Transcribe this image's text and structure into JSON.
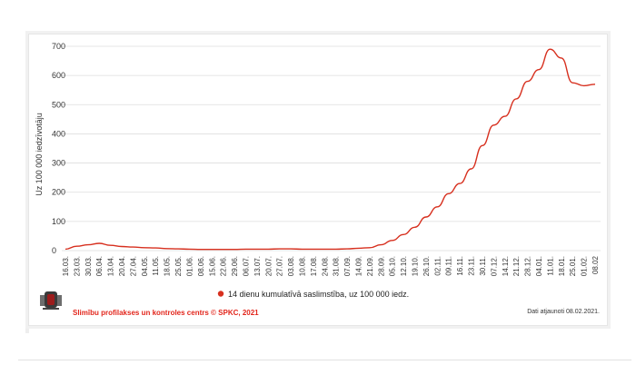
{
  "chart_data": {
    "type": "line",
    "ylabel": "Uz 100 000 iedzīvotāju",
    "ylim": [
      0,
      700
    ],
    "yticks": [
      0,
      100,
      200,
      300,
      400,
      500,
      600,
      700
    ],
    "xtick_labels": [
      "16.03.",
      "23.03.",
      "30.03.",
      "06.04.",
      "13.04.",
      "20.04.",
      "27.04.",
      "04.05.",
      "11.05.",
      "18.05.",
      "25.05.",
      "01.06.",
      "08.06.",
      "15.06.",
      "22.06.",
      "29.06.",
      "06.07.",
      "13.07.",
      "20.07.",
      "27.07.",
      "03.08.",
      "10.08.",
      "17.08.",
      "24.08.",
      "31.08.",
      "07.09.",
      "14.09.",
      "21.09.",
      "28.09.",
      "05.10.",
      "12.10.",
      "19.10.",
      "26.10.",
      "02.11.",
      "09.11.",
      "16.11.",
      "23.11.",
      "30.11.",
      "07.12.",
      "14.12.",
      "21.12.",
      "28.12.",
      "04.01.",
      "11.01.",
      "18.01.",
      "25.01.",
      "01.02.",
      "08.02"
    ],
    "grid": "horizontal",
    "legend_position": "bottom",
    "series": [
      {
        "name": "14 dienu kumulatīvā saslimstība, uz 100 000 iedz.",
        "color": "#d7301f",
        "x": [
          "16.03.",
          "23.03.",
          "30.03.",
          "06.04.",
          "13.04.",
          "20.04.",
          "27.04.",
          "04.05.",
          "11.05.",
          "18.05.",
          "25.05.",
          "01.06.",
          "08.06.",
          "15.06.",
          "22.06.",
          "29.06.",
          "06.07.",
          "13.07.",
          "20.07.",
          "27.07.",
          "03.08.",
          "10.08.",
          "17.08.",
          "24.08.",
          "31.08.",
          "07.09.",
          "14.09.",
          "21.09.",
          "28.09.",
          "05.10.",
          "12.10.",
          "19.10.",
          "26.10.",
          "02.11.",
          "09.11.",
          "16.11.",
          "23.11.",
          "30.11.",
          "07.12.",
          "14.12.",
          "21.12.",
          "28.12.",
          "04.01.",
          "11.01.",
          "18.01.",
          "25.01.",
          "01.02.",
          "08.02"
        ],
        "values": [
          5,
          15,
          20,
          25,
          18,
          14,
          12,
          10,
          9,
          7,
          6,
          5,
          4,
          4,
          4,
          4,
          5,
          5,
          5,
          6,
          6,
          5,
          5,
          5,
          5,
          6,
          8,
          10,
          20,
          35,
          55,
          80,
          115,
          150,
          195,
          230,
          280,
          360,
          430,
          460,
          520,
          580,
          620,
          690,
          660,
          575,
          565,
          570
        ]
      }
    ]
  },
  "footer": {
    "source": "Slimību profilakses un kontroles centrs © SPKC, 2021",
    "updated": "Dati atjaunoti 08.02.2021."
  }
}
